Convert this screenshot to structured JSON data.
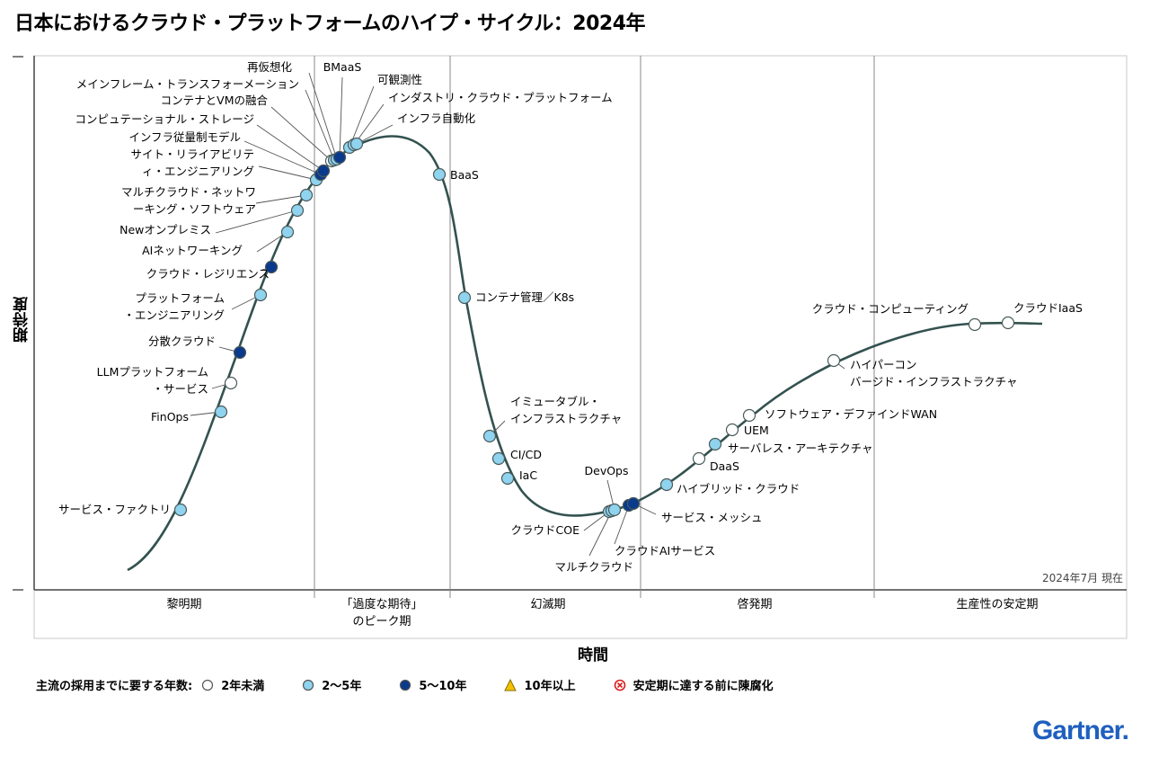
{
  "title": "日本におけるクラウド・プラットフォームのハイプ・サイクル：2024年",
  "colors": {
    "curve": "#33524f",
    "lt2": "#ffffff",
    "y2_5": "#8fd3ef",
    "y5_10": "#0a3a8c",
    "y10plus": "#f2c200",
    "obsolete": "#d81e1e",
    "logo": "#1f5fbf"
  },
  "chart_data": {
    "type": "hype-cycle",
    "ylabel": "期待度",
    "xlabel": "時間",
    "as_of": "2024年7月 現在",
    "phases": [
      "黎明期",
      "「過度な期待」のピーク期",
      "幻滅期",
      "啓発期",
      "生産性の安定期"
    ],
    "legend": {
      "title": "主流の採用までに要する年数:",
      "items": [
        {
          "key": "lt2",
          "label": "2年未満"
        },
        {
          "key": "y2_5",
          "label": "2〜5年"
        },
        {
          "key": "y5_10",
          "label": "5〜10年"
        },
        {
          "key": "y10plus",
          "label": "10年以上"
        },
        {
          "key": "obsolete",
          "label": "安定期に達する前に陳腐化"
        }
      ]
    },
    "technologies": [
      {
        "name": "サービス・ファクトリ",
        "years": "y2_5"
      },
      {
        "name": "FinOps",
        "years": "y2_5"
      },
      {
        "name": "LLMプラットフォーム・サービス",
        "years": "lt2"
      },
      {
        "name": "分散クラウド",
        "years": "y5_10"
      },
      {
        "name": "プラットフォーム・エンジニアリング",
        "years": "y2_5"
      },
      {
        "name": "クラウド・レジリエンス",
        "years": "y5_10"
      },
      {
        "name": "AIネットワーキング",
        "years": "y2_5"
      },
      {
        "name": "Newオンプレミス",
        "years": "y2_5"
      },
      {
        "name": "マルチクラウド・ネットワーキング・ソフトウェア",
        "years": "y2_5"
      },
      {
        "name": "サイト・リライアビリティ・エンジニアリング",
        "years": "y2_5"
      },
      {
        "name": "インフラ従量制モデル",
        "years": "y5_10"
      },
      {
        "name": "コンピュテーショナル・ストレージ",
        "years": "y5_10"
      },
      {
        "name": "コンテナとVMの融合",
        "years": "lt2"
      },
      {
        "name": "メインフレーム・トランスフォーメーション",
        "years": "y2_5"
      },
      {
        "name": "再仮想化",
        "years": "y2_5"
      },
      {
        "name": "BMaaS",
        "years": "y5_10"
      },
      {
        "name": "可観測性",
        "years": "y2_5"
      },
      {
        "name": "インダストリ・クラウド・プラットフォーム",
        "years": "y2_5"
      },
      {
        "name": "インフラ自動化",
        "years": "y2_5"
      },
      {
        "name": "BaaS",
        "years": "y2_5"
      },
      {
        "name": "コンテナ管理／K8s",
        "years": "y2_5"
      },
      {
        "name": "イミュータブル・インフラストラクチャ",
        "years": "y2_5"
      },
      {
        "name": "CI/CD",
        "years": "y2_5"
      },
      {
        "name": "IaC",
        "years": "y2_5"
      },
      {
        "name": "クラウドCOE",
        "years": "y2_5"
      },
      {
        "name": "マルチクラウド",
        "years": "y2_5"
      },
      {
        "name": "DevOps",
        "years": "y2_5"
      },
      {
        "name": "クラウドAIサービス",
        "years": "y5_10"
      },
      {
        "name": "サービス・メッシュ",
        "years": "y5_10"
      },
      {
        "name": "ハイブリッド・クラウド",
        "years": "y2_5"
      },
      {
        "name": "DaaS",
        "years": "lt2"
      },
      {
        "name": "サーバレス・アーキテクチャ",
        "years": "y2_5"
      },
      {
        "name": "UEM",
        "years": "lt2"
      },
      {
        "name": "ソフトウェア・デファインドWAN",
        "years": "lt2"
      },
      {
        "name": "ハイパーコンバージド・インフラストラクチャ",
        "years": "lt2"
      },
      {
        "name": "クラウド・コンピューティング",
        "years": "lt2"
      },
      {
        "name": "クラウドIaaS",
        "years": "lt2"
      }
    ]
  },
  "logo": "Gartner."
}
